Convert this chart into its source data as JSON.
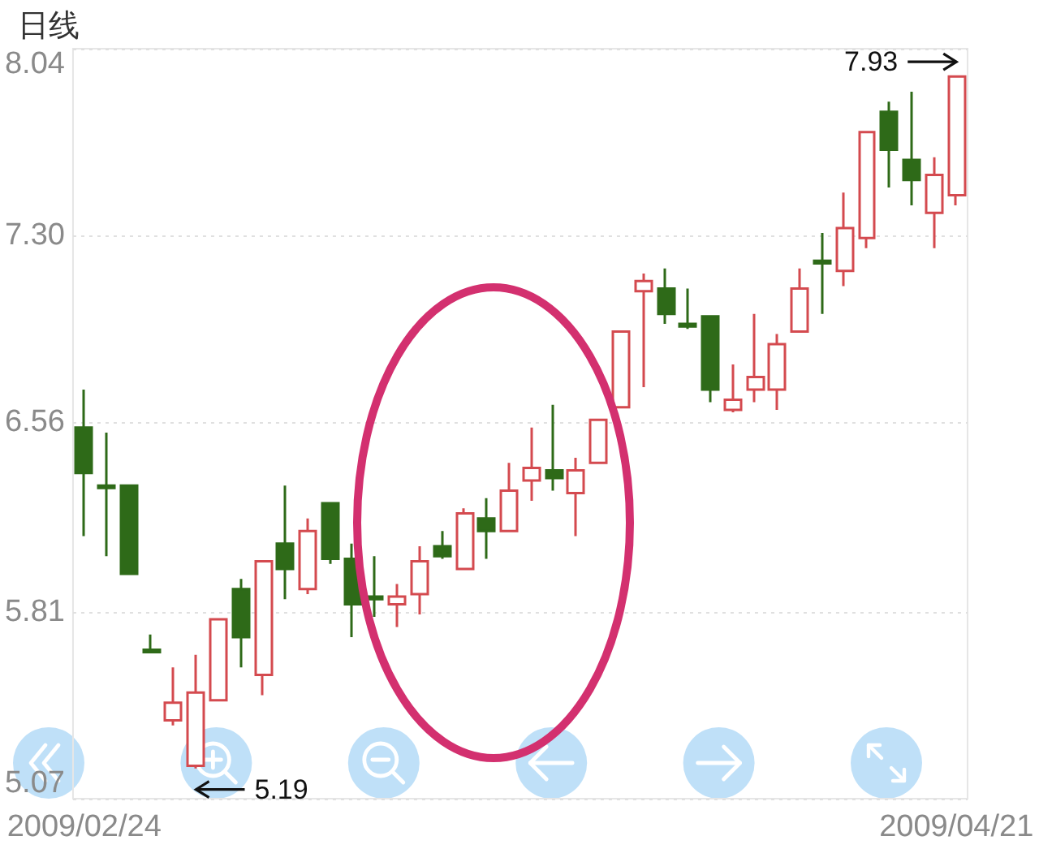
{
  "chart_data": {
    "type": "candlestick",
    "title": "日线",
    "categories": [
      "2009/02/24",
      null,
      null,
      null,
      null,
      null,
      null,
      null,
      null,
      null,
      null,
      null,
      null,
      null,
      null,
      null,
      null,
      null,
      null,
      null,
      null,
      null,
      null,
      null,
      null,
      null,
      null,
      null,
      null,
      null,
      null,
      null,
      null,
      null,
      null,
      null,
      null,
      null,
      null,
      "2009/04/21"
    ],
    "ohlc": [
      [
        6.54,
        6.69,
        6.11,
        6.36
      ],
      [
        6.31,
        6.52,
        6.03,
        6.3
      ],
      [
        6.31,
        6.31,
        5.96,
        5.96
      ],
      [
        5.66,
        5.72,
        5.65,
        5.65
      ],
      [
        5.38,
        5.59,
        5.36,
        5.45
      ],
      [
        5.2,
        5.64,
        5.19,
        5.49
      ],
      [
        5.46,
        5.78,
        5.46,
        5.78
      ],
      [
        5.9,
        5.94,
        5.59,
        5.71
      ],
      [
        5.56,
        6.01,
        5.48,
        6.01
      ],
      [
        6.08,
        6.31,
        5.86,
        5.98
      ],
      [
        5.9,
        6.18,
        5.88,
        6.13
      ],
      [
        6.24,
        6.24,
        6.0,
        6.02
      ],
      [
        6.02,
        6.08,
        5.71,
        5.84
      ],
      [
        5.87,
        6.03,
        5.79,
        5.86
      ],
      [
        5.84,
        5.92,
        5.75,
        5.87
      ],
      [
        5.88,
        6.07,
        5.8,
        6.01
      ],
      [
        6.07,
        6.13,
        6.02,
        6.03
      ],
      [
        5.98,
        6.22,
        5.98,
        6.2
      ],
      [
        6.18,
        6.26,
        6.02,
        6.13
      ],
      [
        6.13,
        6.4,
        6.13,
        6.29
      ],
      [
        6.33,
        6.54,
        6.25,
        6.38
      ],
      [
        6.37,
        6.63,
        6.29,
        6.34
      ],
      [
        6.28,
        6.42,
        6.11,
        6.37
      ],
      [
        6.4,
        6.57,
        6.4,
        6.57
      ],
      [
        6.62,
        6.92,
        6.62,
        6.92
      ],
      [
        7.08,
        7.15,
        6.7,
        7.12
      ],
      [
        7.09,
        7.17,
        6.95,
        6.99
      ],
      [
        6.95,
        7.09,
        6.93,
        6.94
      ],
      [
        6.98,
        6.98,
        6.64,
        6.69
      ],
      [
        6.61,
        6.79,
        6.6,
        6.65
      ],
      [
        6.69,
        6.99,
        6.64,
        6.74
      ],
      [
        6.69,
        6.91,
        6.61,
        6.87
      ],
      [
        6.92,
        7.17,
        6.92,
        7.09
      ],
      [
        7.2,
        7.31,
        6.99,
        7.19
      ],
      [
        7.16,
        7.47,
        7.1,
        7.33
      ],
      [
        7.29,
        7.71,
        7.25,
        7.71
      ],
      [
        7.79,
        7.83,
        7.49,
        7.64
      ],
      [
        7.6,
        7.87,
        7.42,
        7.52
      ],
      [
        7.39,
        7.61,
        7.25,
        7.54
      ],
      [
        7.46,
        7.93,
        7.42,
        7.93
      ]
    ],
    "colors": [
      "#2e6a18",
      "#2e6a18",
      "#2e6a18",
      "#2e6a18",
      "#d44a4f",
      "#d44a4f",
      "#d44a4f",
      "#2e6a18",
      "#d44a4f",
      "#2e6a18",
      "#d44a4f",
      "#2e6a18",
      "#2e6a18",
      "#2e6a18",
      "#d44a4f",
      "#d44a4f",
      "#2e6a18",
      "#d44a4f",
      "#2e6a18",
      "#d44a4f",
      "#d44a4f",
      "#2e6a18",
      "#d44a4f",
      "#d44a4f",
      "#d44a4f",
      "#d44a4f",
      "#2e6a18",
      "#2e6a18",
      "#2e6a18",
      "#d44a4f",
      "#d44a4f",
      "#d44a4f",
      "#d44a4f",
      "#2e6a18",
      "#d44a4f",
      "#d44a4f",
      "#2e6a18",
      "#2e6a18",
      "#d44a4f",
      "#d44a4f"
    ],
    "ylim": [
      5.07,
      8.04
    ],
    "yticks": [
      5.07,
      5.81,
      6.56,
      {
        "value": 7.3,
        "label": "7.30"
      },
      8.04
    ],
    "grid": "y",
    "annotations": [
      "5.19",
      "7.93"
    ]
  }
}
